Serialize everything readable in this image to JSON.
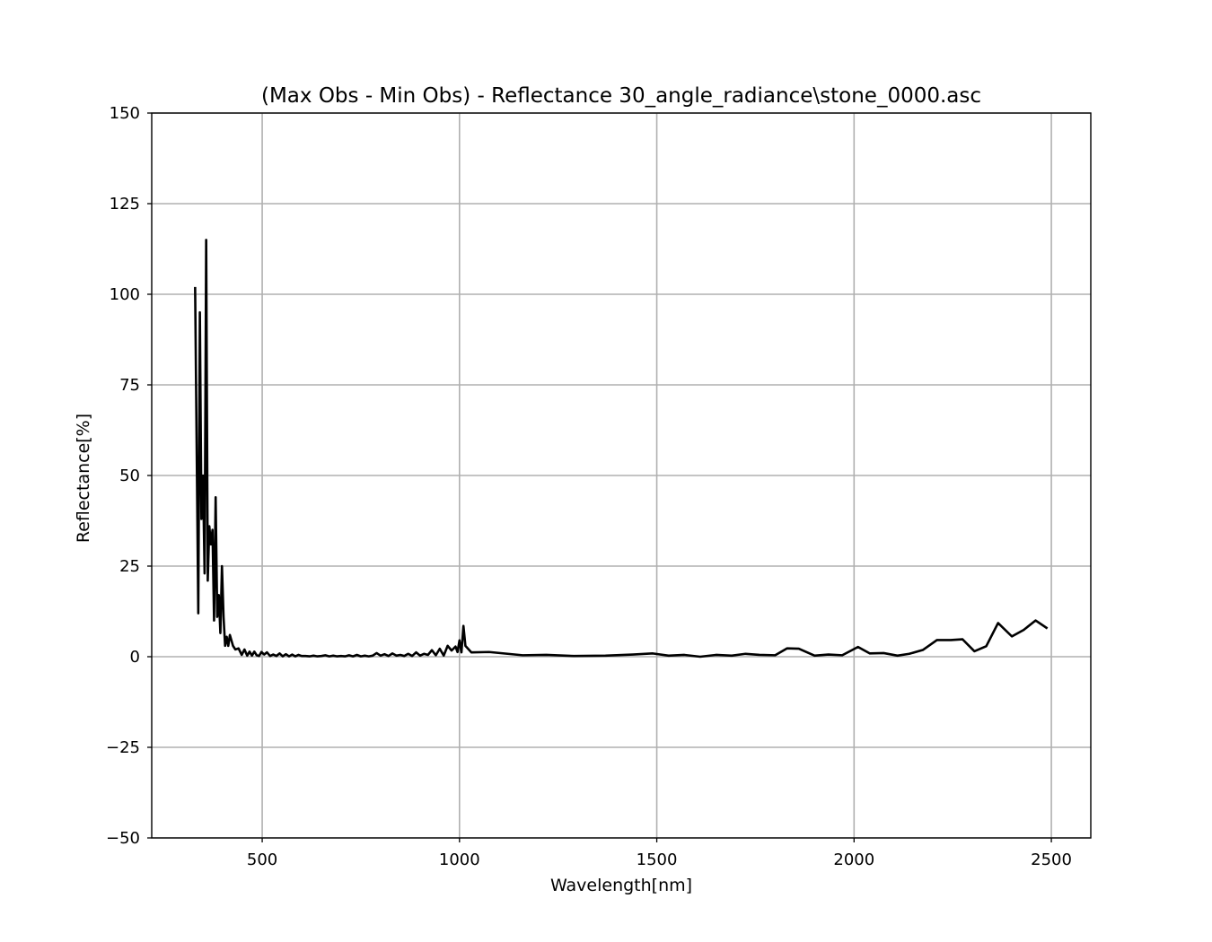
{
  "chart_data": {
    "type": "line",
    "title": "(Max Obs - Min Obs) - Reflectance 30_angle_radiance\\stone_0000.asc",
    "xlabel": "Wavelength[nm]",
    "ylabel": "Reflectance[%]",
    "xlim": [
      220,
      2600
    ],
    "ylim": [
      -50,
      150
    ],
    "xticks": [
      500,
      1000,
      1500,
      2000,
      2500
    ],
    "xtick_labels": [
      "500",
      "1000",
      "1500",
      "2000",
      "2500"
    ],
    "yticks": [
      -50,
      -25,
      0,
      25,
      50,
      75,
      100,
      125,
      150
    ],
    "ytick_labels": [
      "−50",
      "−25",
      "0",
      "25",
      "50",
      "75",
      "100",
      "125",
      "150"
    ],
    "grid": true,
    "series": [
      {
        "color": "#000000",
        "x": [
          330,
          338,
          342,
          346,
          350,
          354,
          358,
          362,
          366,
          370,
          374,
          378,
          382,
          386,
          390,
          394,
          398,
          402,
          406,
          410,
          414,
          418,
          422,
          426,
          432,
          440,
          448,
          455,
          462,
          468,
          474,
          480,
          486,
          492,
          498,
          505,
          512,
          520,
          528,
          536,
          544,
          552,
          560,
          568,
          576,
          584,
          592,
          600,
          610,
          620,
          630,
          640,
          650,
          660,
          670,
          680,
          690,
          700,
          710,
          720,
          730,
          740,
          750,
          760,
          770,
          780,
          790,
          800,
          810,
          820,
          830,
          840,
          850,
          860,
          870,
          880,
          890,
          900,
          910,
          920,
          930,
          940,
          950,
          960,
          970,
          980,
          990,
          995,
          1000,
          1005,
          1010,
          1015,
          1030,
          1075,
          1160,
          1220,
          1290,
          1370,
          1440,
          1490,
          1530,
          1570,
          1610,
          1650,
          1690,
          1725,
          1760,
          1800,
          1830,
          1860,
          1900,
          1935,
          1970,
          2010,
          2040,
          2075,
          2110,
          2140,
          2175,
          2210,
          2245,
          2275,
          2305,
          2335,
          2365,
          2400,
          2430,
          2460,
          2490
        ],
        "y": [
          102,
          12,
          95,
          38,
          50,
          23,
          115,
          21,
          36,
          31,
          35,
          10,
          44,
          11,
          17,
          6.5,
          25,
          11,
          3,
          5.5,
          3,
          6,
          4.5,
          3,
          2,
          2.3,
          0.5,
          2,
          0.3,
          1.4,
          0.3,
          1.4,
          0.4,
          0.2,
          1.3,
          0.6,
          1.2,
          0.2,
          0.6,
          0.2,
          0.9,
          0.1,
          0.7,
          0.1,
          0.6,
          0.1,
          0.5,
          0.2,
          0.2,
          0.1,
          0.3,
          0.1,
          0.2,
          0.4,
          0.1,
          0.3,
          0.1,
          0.2,
          0.1,
          0.4,
          0.1,
          0.5,
          0.1,
          0.3,
          0.1,
          0.3,
          1.0,
          0.3,
          0.7,
          0.2,
          0.9,
          0.3,
          0.5,
          0.2,
          0.8,
          0.2,
          1.2,
          0.3,
          0.8,
          0.5,
          1.8,
          0.4,
          2.2,
          0.3,
          3.0,
          1.7,
          2.8,
          1.3,
          4.5,
          1.2,
          8.5,
          3.0,
          1.2,
          1.3,
          0.4,
          0.5,
          0.2,
          0.3,
          0.6,
          0.9,
          0.3,
          0.5,
          0.0,
          0.5,
          0.3,
          0.8,
          0.5,
          0.4,
          2.3,
          2.2,
          0.3,
          0.6,
          0.4,
          2.7,
          0.9,
          1.0,
          0.3,
          0.8,
          1.9,
          4.6,
          4.6,
          4.8,
          1.5,
          2.9,
          9.3,
          5.6,
          7.4,
          10.0,
          7.8
        ]
      }
    ]
  }
}
